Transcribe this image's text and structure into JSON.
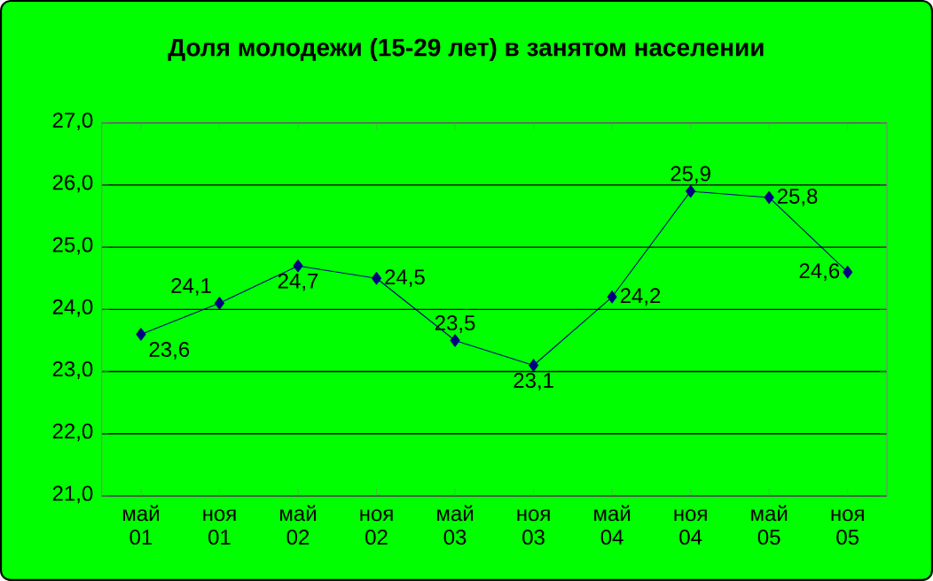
{
  "chart_data": {
    "type": "line",
    "title": "Доля молодежи (15-29 лет) в занятом населении",
    "categories": [
      "май 01",
      "ноя 01",
      "май 02",
      "ноя 02",
      "май 03",
      "ноя 03",
      "май 04",
      "ноя 04",
      "май 05",
      "ноя 05"
    ],
    "series": [
      {
        "color": "#000080",
        "values": [
          23.6,
          24.1,
          24.7,
          24.5,
          23.5,
          23.1,
          24.2,
          25.9,
          25.8,
          24.6
        ],
        "value_labels": [
          "23,6",
          "24,1",
          "24,7",
          "24,5",
          "23,5",
          "23,1",
          "24,2",
          "25,9",
          "25,8",
          "24,6"
        ]
      }
    ],
    "ylim": [
      21,
      27
    ],
    "yticks": [
      {
        "value": 21,
        "label": "21,0"
      },
      {
        "value": 22,
        "label": "22,0"
      },
      {
        "value": 23,
        "label": "23,0"
      },
      {
        "value": 24,
        "label": "24,0"
      },
      {
        "value": 25,
        "label": "25,0"
      },
      {
        "value": 26,
        "label": "26,0"
      },
      {
        "value": 27,
        "label": "27,0"
      }
    ],
    "grid": "y",
    "marker": "diamond",
    "line_style": "solid"
  }
}
